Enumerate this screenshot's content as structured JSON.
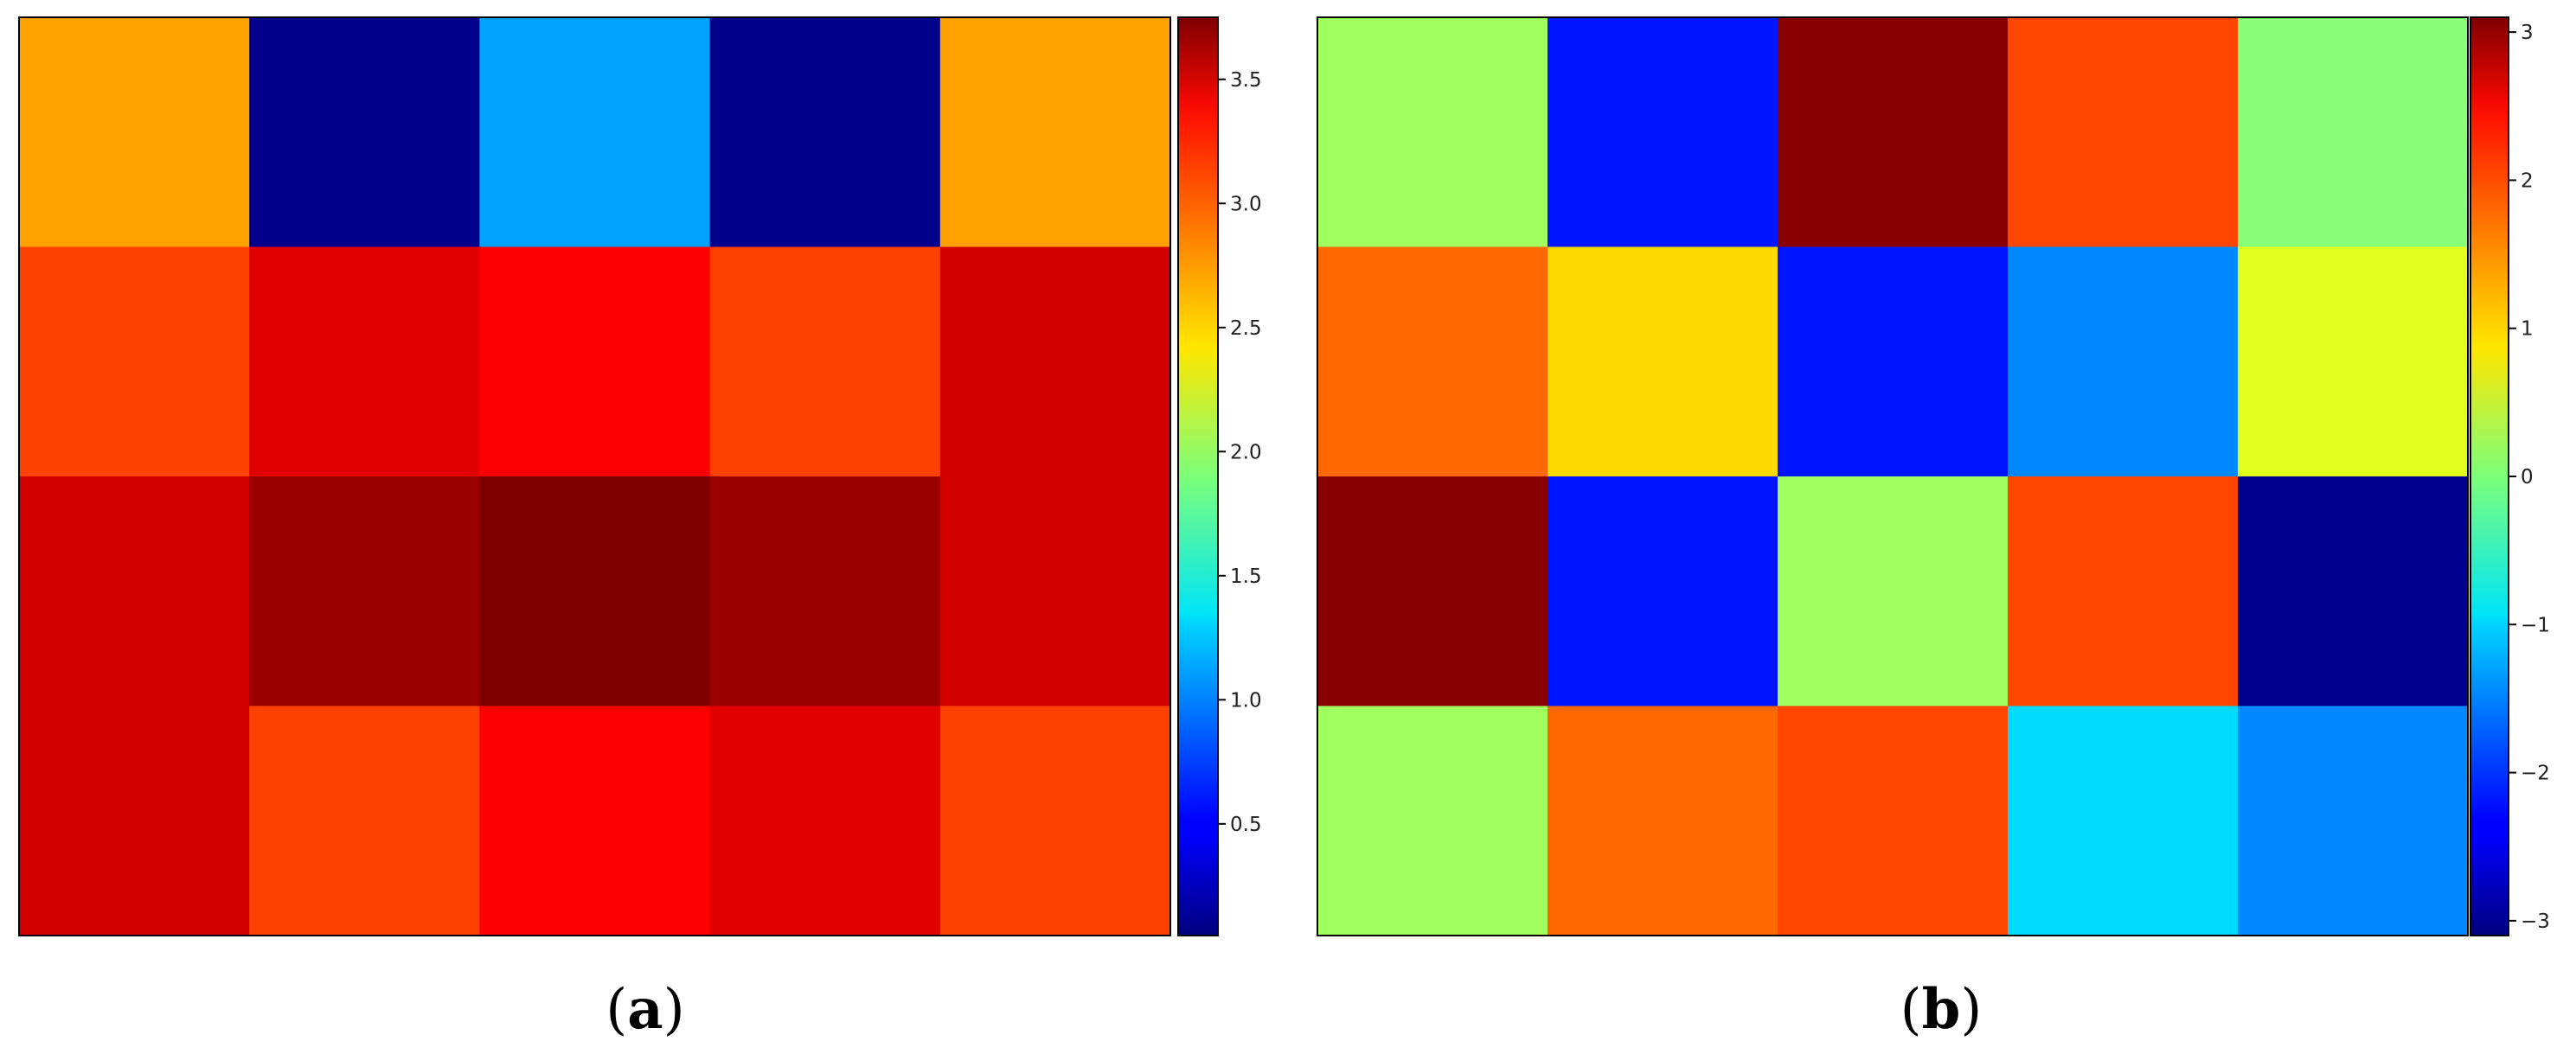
{
  "figure": {
    "panels": [
      {
        "label_open": "(",
        "label_letter": "a",
        "label_close": ")"
      },
      {
        "label_open": "(",
        "label_letter": "b",
        "label_close": ")"
      }
    ]
  },
  "chart_data": [
    {
      "type": "heatmap",
      "title": "",
      "xlabel": "",
      "ylabel": "",
      "rows": 4,
      "cols": 5,
      "values": [
        [
          2.7,
          0.1,
          1.1,
          0.1,
          2.7
        ],
        [
          3.05,
          3.4,
          3.3,
          3.05,
          3.45
        ],
        [
          3.45,
          3.65,
          3.75,
          3.65,
          3.45
        ],
        [
          3.45,
          3.05,
          3.3,
          3.4,
          3.05
        ]
      ],
      "colormap": "jet",
      "vmin": 0.05,
      "vmax": 3.75,
      "colorbar_ticks": [
        0.5,
        1.0,
        1.5,
        2.0,
        2.5,
        3.0,
        3.5
      ],
      "colorbar_tick_labels": [
        "0.5",
        "1.0",
        "1.5",
        "2.0",
        "2.5",
        "3.0",
        "3.5"
      ],
      "grid": false
    },
    {
      "type": "heatmap",
      "title": "",
      "xlabel": "",
      "ylabel": "",
      "rows": 4,
      "cols": 5,
      "values": [
        [
          0.2,
          -2.2,
          3.05,
          1.9,
          0.05
        ],
        [
          1.7,
          1.0,
          -2.2,
          -1.5,
          0.6
        ],
        [
          3.05,
          -2.2,
          0.2,
          1.9,
          -3.0
        ],
        [
          0.2,
          1.7,
          1.9,
          -1.0,
          -1.5
        ]
      ],
      "colormap": "jet",
      "vmin": -3.1,
      "vmax": 3.1,
      "colorbar_ticks": [
        -3,
        -2,
        -1,
        0,
        1,
        2,
        3
      ],
      "colorbar_tick_labels": [
        "−3",
        "−2",
        "−1",
        "0",
        "1",
        "2",
        "3"
      ],
      "grid": false
    }
  ]
}
